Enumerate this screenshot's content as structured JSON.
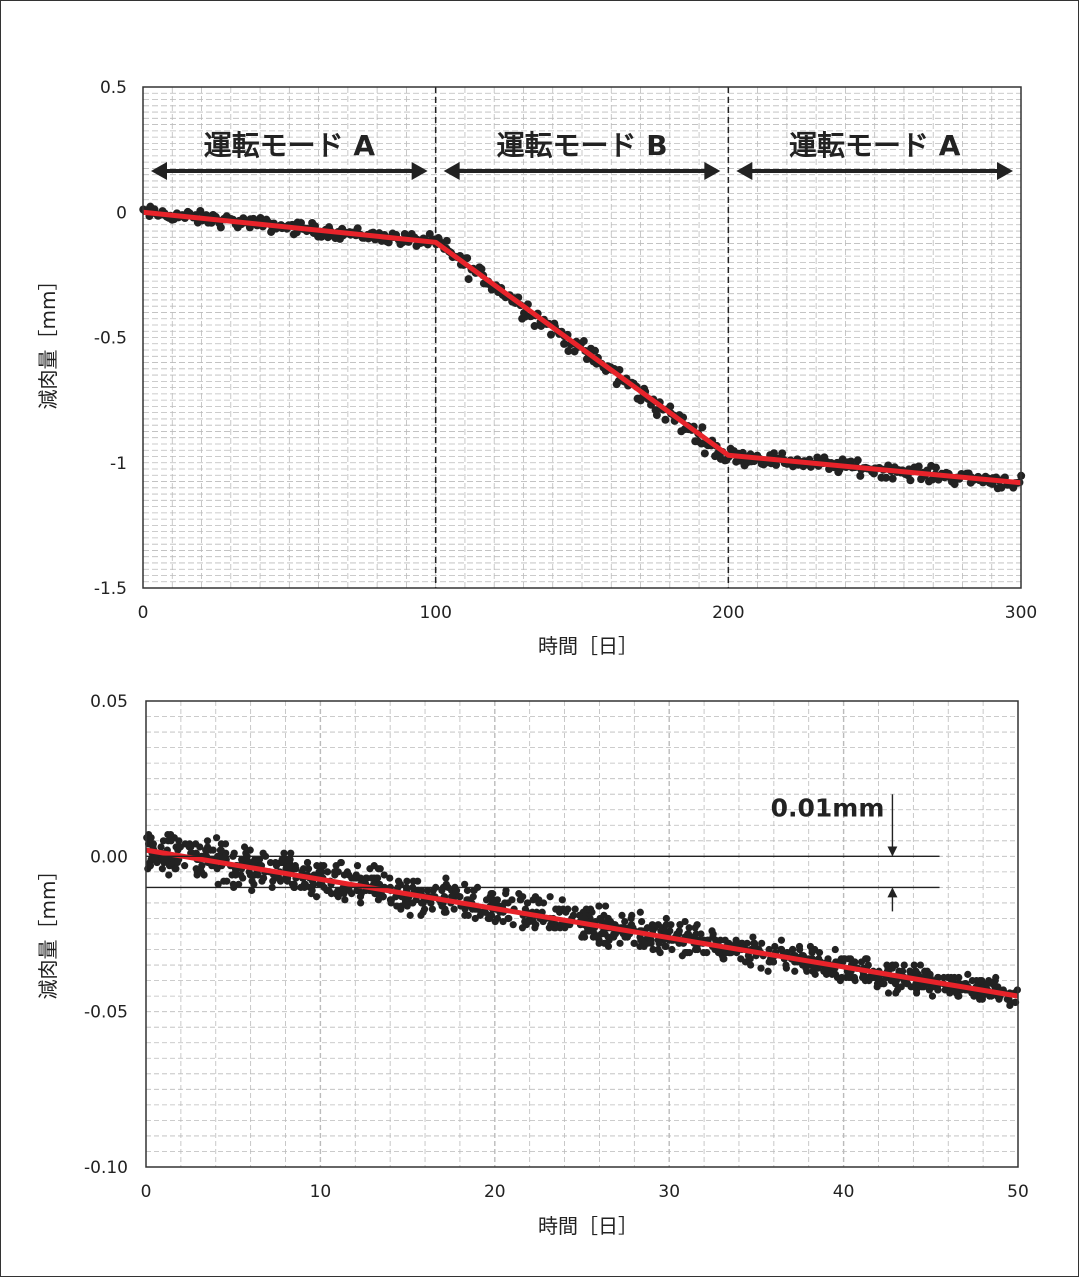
{
  "chart_data": [
    {
      "type": "scatter",
      "title": "",
      "xlabel": "時間［日］",
      "ylabel": "減肉量［mm］",
      "xlim": [
        0,
        300
      ],
      "ylim": [
        -1.5,
        0.5
      ],
      "x_ticks": [
        "0",
        "100",
        "200",
        "300"
      ],
      "y_ticks": [
        "0.5",
        "0",
        "-0.5",
        "-1",
        "-1.5"
      ],
      "grid": true,
      "mode_boundaries": [
        100,
        200
      ],
      "modes": [
        {
          "label": "運転モード A",
          "x_start": 0,
          "x_end": 100
        },
        {
          "label": "運転モード B",
          "x_start": 100,
          "x_end": 200
        },
        {
          "label": "運転モード A",
          "x_start": 200,
          "x_end": 300
        }
      ],
      "scatter_segments": [
        {
          "x_start": 0,
          "x_end": 100,
          "y_start": 0.0,
          "y_end": -0.12,
          "noise": 0.022,
          "count": 150
        },
        {
          "x_start": 100,
          "x_end": 200,
          "y_start": -0.12,
          "y_end": -0.98,
          "noise": 0.035,
          "count": 150
        },
        {
          "x_start": 200,
          "x_end": 300,
          "y_start": -0.97,
          "y_end": -1.08,
          "noise": 0.025,
          "count": 150
        }
      ],
      "fit_line": {
        "x": [
          0,
          100,
          200,
          300
        ],
        "y": [
          0.0,
          -0.12,
          -0.97,
          -1.08
        ],
        "color": "#e8232a"
      }
    },
    {
      "type": "scatter",
      "title": "",
      "xlabel": "時間［日］",
      "ylabel": "減肉量［mm］",
      "xlim": [
        0,
        50
      ],
      "ylim": [
        -0.1,
        0.05
      ],
      "x_ticks": [
        "0",
        "10",
        "20",
        "30",
        "40",
        "50"
      ],
      "y_ticks": [
        "0.05",
        "0.00",
        "-0.05",
        "-0.10"
      ],
      "grid": true,
      "scatter_segments": [
        {
          "x_start": 0,
          "x_end": 50,
          "y_start": 0.002,
          "y_end": -0.045,
          "noise": 0.005,
          "count": 1100
        }
      ],
      "fit_line": {
        "x": [
          0,
          50
        ],
        "y": [
          0.002,
          -0.045
        ],
        "color": "#e8232a"
      },
      "annotation": {
        "label": "0.01mm",
        "y_upper": 0.0,
        "y_lower": -0.01,
        "x_from": 0,
        "x_to": 45.5,
        "arrow_x": 42.8
      }
    }
  ],
  "colors": {
    "points": "#222222",
    "fit": "#e8232a",
    "grid": "#bbbbbb",
    "frame": "#333333"
  }
}
